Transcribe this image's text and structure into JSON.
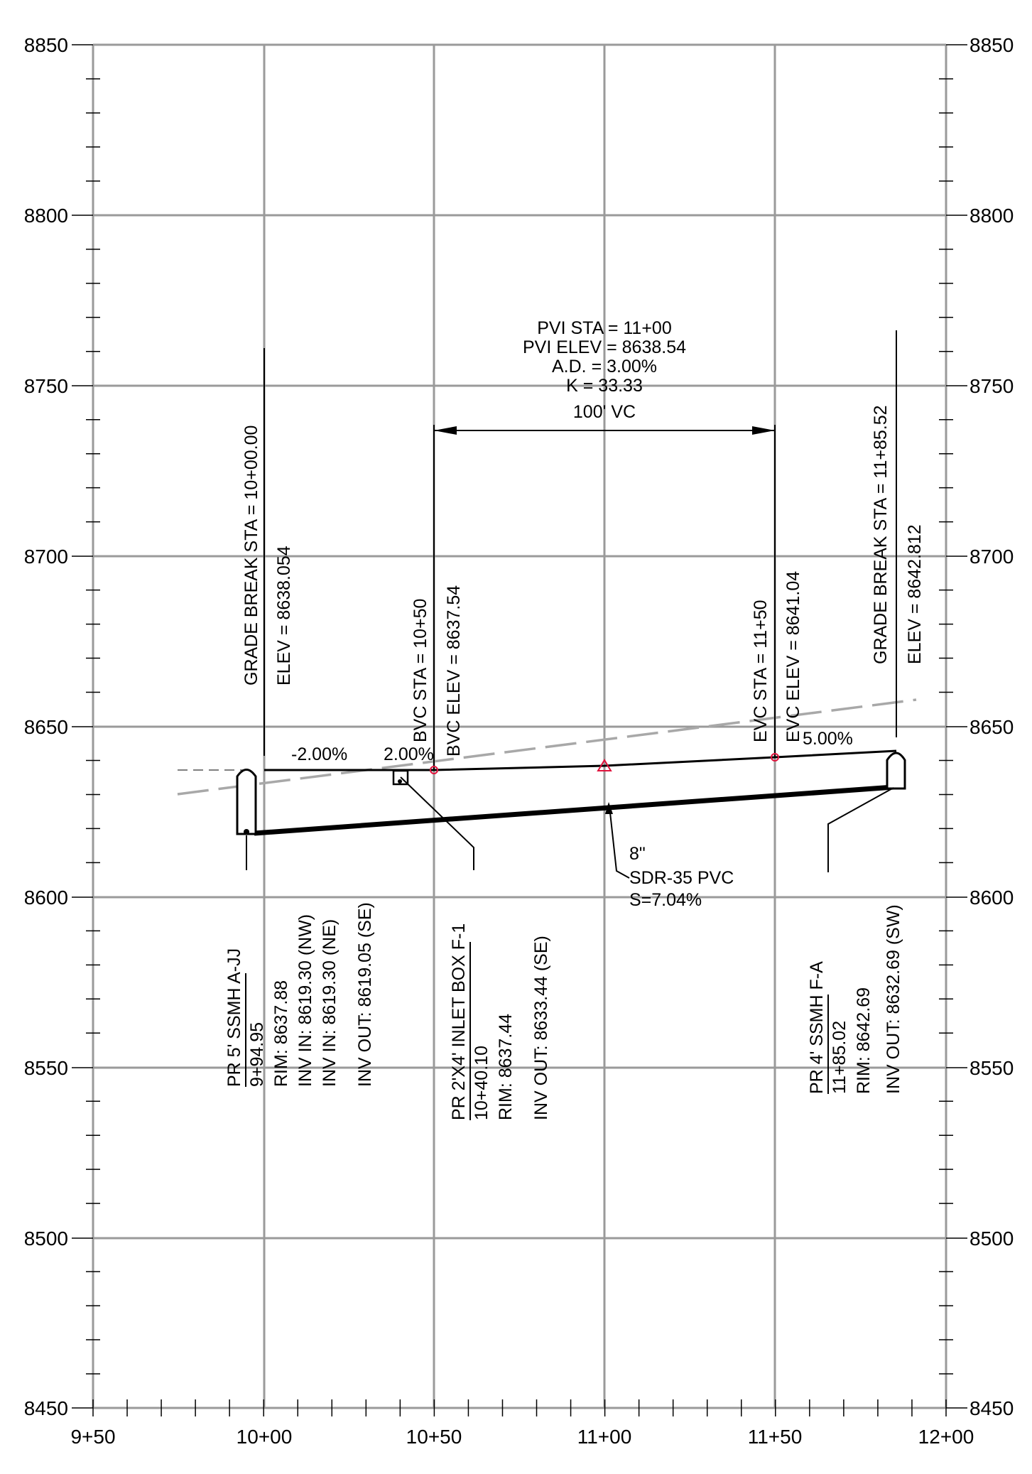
{
  "axes": {
    "x_ticks": [
      "9+50",
      "10+00",
      "10+50",
      "11+00",
      "11+50",
      "12+00"
    ],
    "y_ticks": [
      "8850",
      "8800",
      "8750",
      "8700",
      "8650",
      "8600",
      "8550",
      "8500",
      "8450"
    ],
    "x_range_ft": [
      950,
      1200
    ],
    "y_range": [
      8450,
      8850
    ],
    "grid": true
  },
  "vertical_curve": {
    "pvi_sta": "PVI STA = 11+00",
    "pvi_elev": "PVI ELEV = 8638.54",
    "ad": "A.D. = 3.00%",
    "k": "K = 33.33",
    "vc": "100' VC",
    "bvc_sta": "BVC STA = 10+50",
    "bvc_elev": "BVC ELEV = 8637.54",
    "evc_sta": "EVC STA = 11+50",
    "evc_elev": "EVC ELEV = 8641.04"
  },
  "grade_breaks": {
    "left_sta": "GRADE BREAK STA = 10+00.00",
    "left_elev": "ELEV = 8638.054",
    "right_sta": "GRADE BREAK STA = 11+85.52",
    "right_elev": "ELEV = 8642.812"
  },
  "slopes": {
    "s1": "-2.00%",
    "s2": "2.00%",
    "s3": "5.00%"
  },
  "pipe": {
    "size": "8\"",
    "material": "SDR-35 PVC",
    "slope": "S=7.04%"
  },
  "structures": {
    "ssmh_ajj": [
      "PR 5' SSMH A-JJ",
      "9+94.95",
      "RIM: 8637.88",
      "INV IN: 8619.30 (NW)",
      "INV IN: 8619.30 (NE)",
      "INV OUT: 8619.05 (SE)"
    ],
    "inlet_f1": [
      "PR 2'X4' INLET BOX F-1",
      "10+40.10",
      "RIM: 8637.44",
      "INV OUT: 8633.44 (SE)"
    ],
    "ssmh_fa": [
      "PR 4' SSMH F-A",
      "11+85.02",
      "RIM: 8642.69",
      "INV OUT: 8632.69 (SW)"
    ]
  },
  "profile_points": {
    "grade_line": [
      [
        1000,
        8638.054
      ],
      [
        1050,
        8637.54
      ],
      [
        1100,
        8638.54
      ],
      [
        1150,
        8641.04
      ],
      [
        1185.52,
        8642.812
      ]
    ],
    "existing_ground": [
      [
        974,
        8630
      ],
      [
        1192,
        8658
      ]
    ],
    "pipe_invert": [
      [
        1000,
        8619.05
      ],
      [
        1185.02,
        8632.69
      ]
    ],
    "pvi": [
      1100,
      8638.54
    ],
    "bvc": [
      1050,
      8637.54
    ],
    "evc": [
      1150,
      8641.04
    ]
  }
}
